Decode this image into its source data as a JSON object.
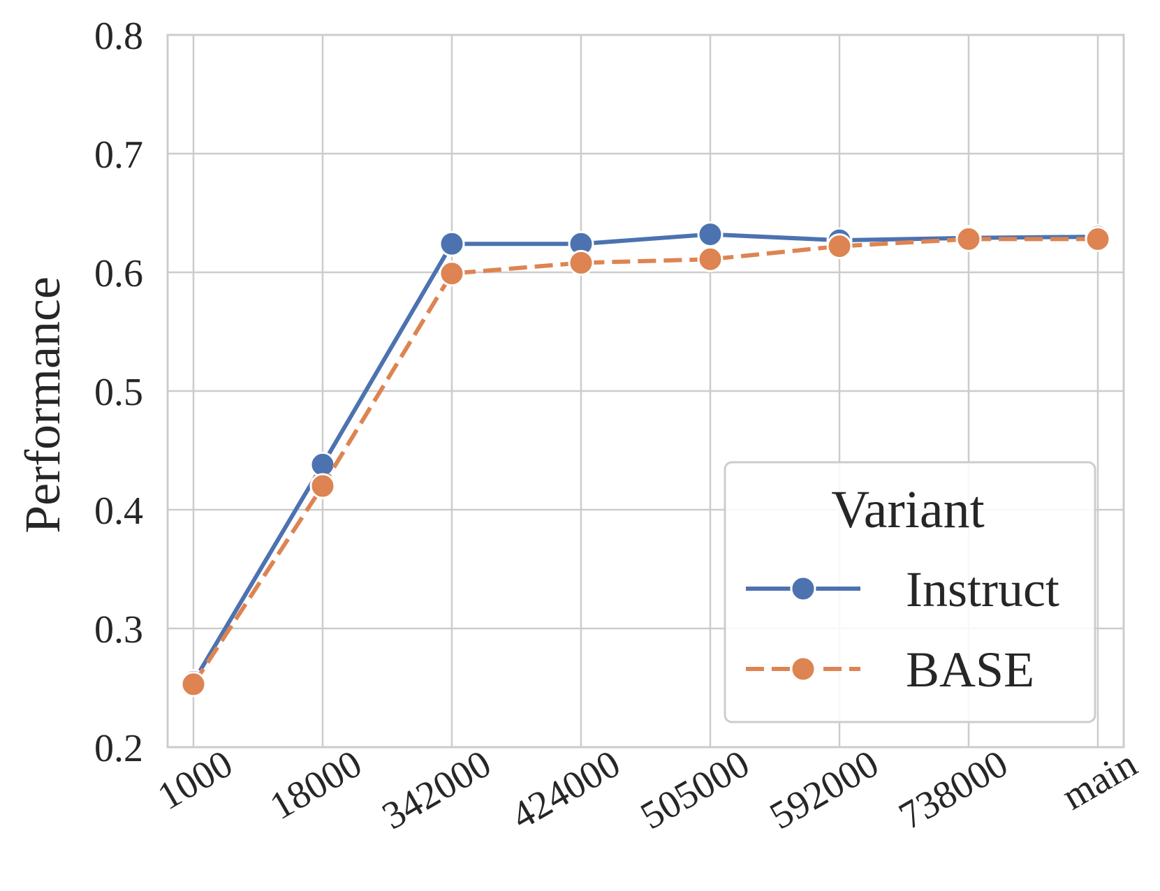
{
  "chart_data": {
    "type": "line",
    "categories": [
      "1000",
      "18000",
      "342000",
      "424000",
      "505000",
      "592000",
      "738000",
      "main"
    ],
    "series": [
      {
        "name": "Instruct",
        "color": "#4c72b0",
        "line_style": "solid",
        "marker": "circle",
        "values": [
          0.255,
          0.438,
          0.624,
          0.624,
          0.632,
          0.627,
          0.629,
          0.63
        ]
      },
      {
        "name": "BASE",
        "color": "#dd8452",
        "line_style": "dashed",
        "marker": "circle",
        "values": [
          0.253,
          0.42,
          0.599,
          0.608,
          0.611,
          0.622,
          0.628,
          0.628
        ]
      }
    ],
    "title": "",
    "xlabel": "",
    "ylabel": "Performance",
    "ylim": [
      0.2,
      0.8
    ],
    "yticks": [
      "0.2",
      "0.3",
      "0.4",
      "0.5",
      "0.6",
      "0.7",
      "0.8"
    ],
    "grid": true,
    "legend": {
      "title": "Variant",
      "placement": "lower-right"
    }
  }
}
